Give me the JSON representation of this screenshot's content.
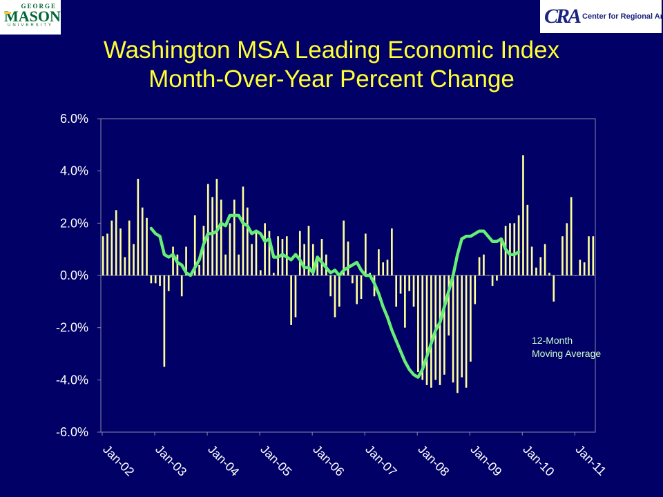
{
  "logos": {
    "left": {
      "top": "GEORGE",
      "main": "MASON",
      "sub": "UNIVERSITY"
    },
    "right": {
      "mark": "CRA",
      "name": "Center for Regional Analysis"
    }
  },
  "colors": {
    "background": "#000066",
    "bars": "#ffff99",
    "line": "#66ee77",
    "title": "#ffff33",
    "text": "#ffffff"
  },
  "chart_data": {
    "type": "bar",
    "title": [
      "Washington MSA Leading Economic Index",
      "Month-Over-Year Percent Change"
    ],
    "xlabel": "",
    "ylabel": "",
    "ylim": [
      -6.0,
      6.0
    ],
    "yticks": [
      "6.0%",
      "4.0%",
      "2.0%",
      "0.0%",
      "-2.0%",
      "-4.0%",
      "-6.0%"
    ],
    "ytick_values": [
      6,
      4,
      2,
      0,
      -2,
      -4,
      -6
    ],
    "xticks": [
      "Jan-02",
      "Jan-03",
      "Jan-04",
      "Jan-05",
      "Jan-06",
      "Jan-07",
      "Jan-08",
      "Jan-09",
      "Jan-10",
      "Jan-11"
    ],
    "grid": false,
    "start": "Jan-02",
    "annotation": [
      "12-Month",
      "Moving Average"
    ],
    "series": [
      {
        "type": "bar",
        "values": [
          1.5,
          1.6,
          2.1,
          2.5,
          1.8,
          0.7,
          2.1,
          1.2,
          3.7,
          2.6,
          2.2,
          -0.3,
          -0.3,
          -0.4,
          -3.5,
          -0.6,
          1.1,
          0.8,
          -0.8,
          1.1,
          0.0,
          2.3,
          0.4,
          1.9,
          3.5,
          3.0,
          3.7,
          2.9,
          0.8,
          2.0,
          2.9,
          0.8,
          3.4,
          2.6,
          1.2,
          1.7,
          0.2,
          2.0,
          1.7,
          0.1,
          1.5,
          1.4,
          1.5,
          -1.9,
          -1.6,
          1.7,
          1.2,
          1.9,
          1.2,
          0.6,
          1.4,
          0.8,
          -0.8,
          -1.6,
          -1.2,
          2.1,
          1.3,
          -0.3,
          -1.1,
          -0.9,
          1.6,
          0.1,
          -0.8,
          1.0,
          0.5,
          0.6,
          1.8,
          -1.2,
          -0.7,
          -2.0,
          -0.6,
          -1.2,
          -3.7,
          -4.0,
          -4.2,
          -4.3,
          -4.0,
          -4.2,
          -3.8,
          -2.3,
          -4.1,
          -4.5,
          -3.9,
          -4.3,
          -3.3,
          -1.1,
          0.7,
          0.8,
          0.0,
          -0.4,
          -0.2,
          1.4,
          1.9,
          2.0,
          2.0,
          2.3,
          4.6,
          2.7,
          1.1,
          0.3,
          0.7,
          1.2,
          0.1,
          -1.0,
          0.0,
          1.5,
          2.0,
          3.0,
          0.0,
          0.6,
          0.5,
          1.5,
          1.5
        ]
      },
      {
        "type": "line",
        "name": "12-Month Moving Average",
        "start_index": 11,
        "values": [
          1.8,
          1.6,
          1.5,
          0.8,
          0.7,
          0.8,
          0.5,
          0.4,
          0.1,
          0.0,
          0.3,
          0.6,
          1.2,
          1.6,
          1.6,
          1.7,
          2.0,
          1.9,
          2.3,
          2.3,
          2.3,
          2.0,
          1.9,
          1.6,
          1.7,
          1.6,
          1.3,
          1.4,
          0.7,
          0.7,
          0.8,
          0.7,
          0.6,
          0.8,
          0.6,
          0.3,
          0.3,
          0.1,
          0.7,
          0.5,
          0.3,
          0.1,
          0.2,
          0.0,
          0.2,
          0.3,
          0.4,
          0.5,
          0.2,
          0.0,
          0.0,
          -0.3,
          -0.7,
          -1.2,
          -1.6,
          -2.1,
          -2.5,
          -2.9,
          -3.3,
          -3.6,
          -3.8,
          -3.9,
          -3.6,
          -3.1,
          -2.6,
          -2.1,
          -1.8,
          -1.2,
          -0.6,
          0.0,
          0.8,
          1.4,
          1.5,
          1.5,
          1.6,
          1.7,
          1.7,
          1.5,
          1.3,
          1.3,
          1.4,
          1.0,
          0.8,
          0.8,
          0.9
        ]
      }
    ]
  }
}
